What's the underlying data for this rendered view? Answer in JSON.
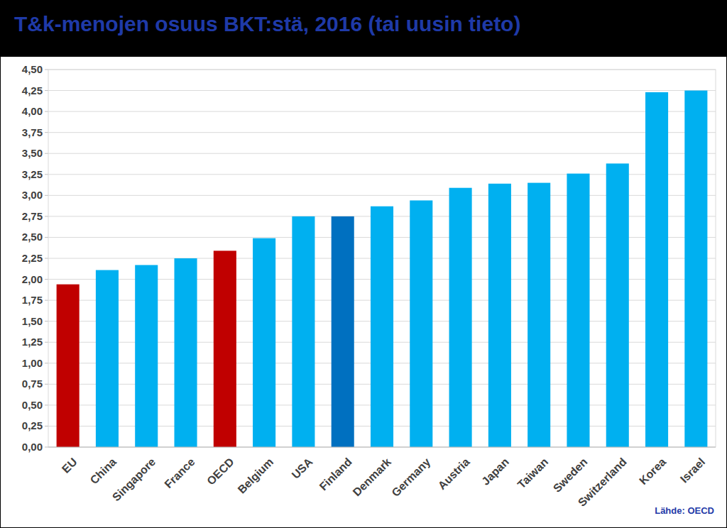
{
  "chart_data": {
    "type": "bar",
    "title": "T&k-menojen osuus BKT:stä, 2016 (tai uusin tieto)",
    "categories": [
      "EU",
      "China",
      "Singapore",
      "France",
      "OECD",
      "Belgium",
      "USA",
      "Finland",
      "Denmark",
      "Germany",
      "Austria",
      "Japan",
      "Taiwan",
      "Sweden",
      "Switzerland",
      "Korea",
      "Israel"
    ],
    "values": [
      1.94,
      2.11,
      2.17,
      2.25,
      2.34,
      2.49,
      2.75,
      2.75,
      2.87,
      2.94,
      3.09,
      3.14,
      3.15,
      3.26,
      3.38,
      4.23,
      4.25
    ],
    "colors": [
      "#c00000",
      "#00b0f0",
      "#00b0f0",
      "#00b0f0",
      "#c00000",
      "#00b0f0",
      "#00b0f0",
      "#0070c0",
      "#00b0f0",
      "#00b0f0",
      "#00b0f0",
      "#00b0f0",
      "#00b0f0",
      "#00b0f0",
      "#00b0f0",
      "#00b0f0",
      "#00b0f0"
    ],
    "ylim": [
      0,
      4.5
    ],
    "yticks": [
      {
        "value": 0,
        "label": "0,00"
      },
      {
        "value": 0.25,
        "label": "0,25"
      },
      {
        "value": 0.5,
        "label": "0,50"
      },
      {
        "value": 0.75,
        "label": "0,75"
      },
      {
        "value": 1,
        "label": "1,00"
      },
      {
        "value": 1.25,
        "label": "1,25"
      },
      {
        "value": 1.5,
        "label": "1,50"
      },
      {
        "value": 1.75,
        "label": "1,75"
      },
      {
        "value": 2,
        "label": "2,00"
      },
      {
        "value": 2.25,
        "label": "2,25"
      },
      {
        "value": 2.5,
        "label": "2,50"
      },
      {
        "value": 2.75,
        "label": "2,75"
      },
      {
        "value": 3,
        "label": "3,00"
      },
      {
        "value": 3.25,
        "label": "3,25"
      },
      {
        "value": 3.5,
        "label": "3,50"
      },
      {
        "value": 3.75,
        "label": "3,75"
      },
      {
        "value": 4,
        "label": "4,00"
      },
      {
        "value": 4.25,
        "label": "4,25"
      },
      {
        "value": 4.5,
        "label": "4,50"
      }
    ],
    "grid": true,
    "annotations": [
      "Lähde: OECD"
    ]
  }
}
